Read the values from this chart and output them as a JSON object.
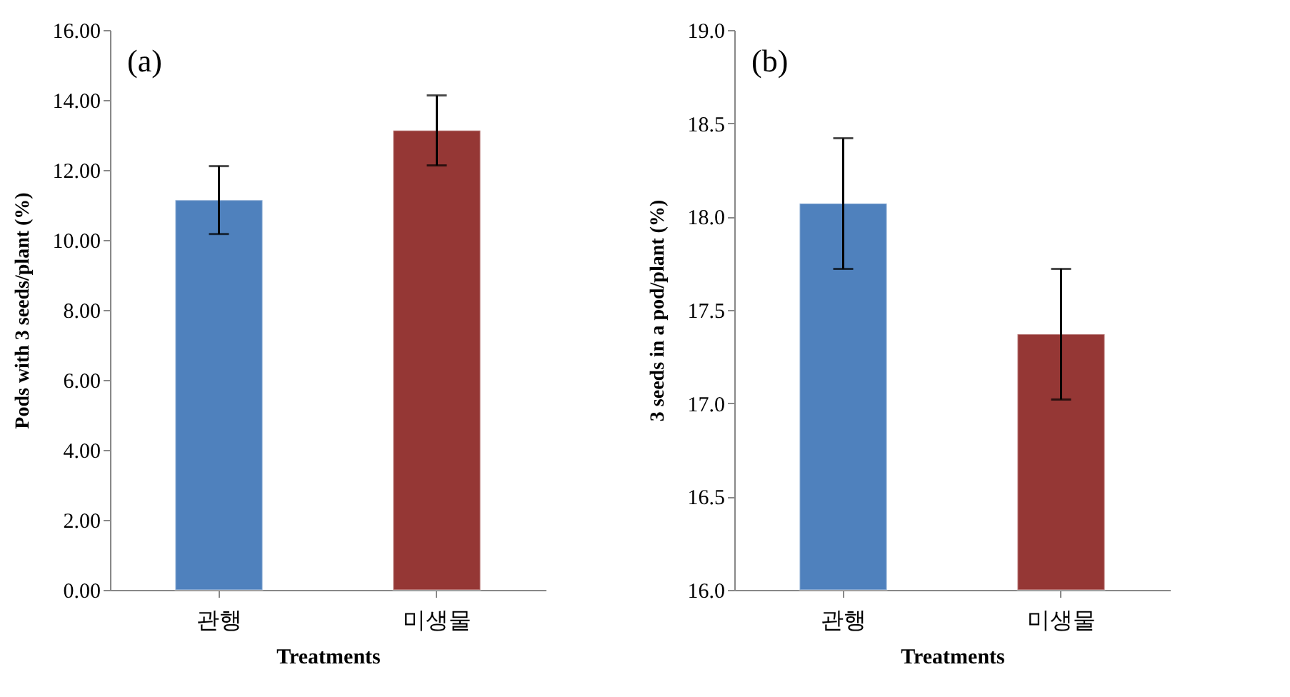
{
  "chart_data": [
    {
      "type": "bar",
      "xlabel": "Treatments",
      "ylabel": "Pods with 3 seeds/plant (%)",
      "annotations": [
        "(a)"
      ],
      "categories": [
        "관행",
        "미생물"
      ],
      "values": [
        11.14,
        13.13
      ],
      "colors": [
        "#4f81bd",
        "#953735"
      ],
      "errors": [
        0.97,
        1.0
      ],
      "ylim": [
        0,
        16
      ],
      "yticks": [
        {
          "value": 0,
          "label": "0.00"
        },
        {
          "value": 2,
          "label": "2.00"
        },
        {
          "value": 4,
          "label": "4.00"
        },
        {
          "value": 6,
          "label": "6.00"
        },
        {
          "value": 8,
          "label": "8.00"
        },
        {
          "value": 10,
          "label": "10.00"
        },
        {
          "value": 12,
          "label": "12.00"
        },
        {
          "value": 14,
          "label": "14.00"
        },
        {
          "value": 16,
          "label": "16.00"
        }
      ],
      "grid": false
    },
    {
      "type": "bar",
      "xlabel": "Treatments",
      "ylabel": "3 seeds in a pod/plant  (%)",
      "annotations": [
        "(b)"
      ],
      "categories": [
        "관행",
        "미생물"
      ],
      "values": [
        18.07,
        17.37
      ],
      "colors": [
        "#4f81bd",
        "#953735"
      ],
      "errors": [
        0.35,
        0.35
      ],
      "ylim": [
        16,
        19
      ],
      "yticks": [
        {
          "value": 16,
          "label": "16.0"
        },
        {
          "value": 16.5,
          "label": "16.5"
        },
        {
          "value": 17,
          "label": "17.0"
        },
        {
          "value": 17.5,
          "label": "17.5"
        },
        {
          "value": 18,
          "label": "18.0"
        },
        {
          "value": 18.5,
          "label": "18.5"
        },
        {
          "value": 19,
          "label": "19.0"
        }
      ],
      "grid": false
    }
  ]
}
